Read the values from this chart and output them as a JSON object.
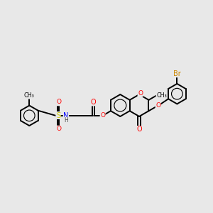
{
  "bg_color": "#e8e8e8",
  "atom_colors": {
    "C": "#000000",
    "O": "#ff0000",
    "N": "#0000ff",
    "S": "#cccc00",
    "Br": "#cc8800",
    "H": "#444444"
  },
  "bond_color": "#000000",
  "bond_width": 1.4,
  "figsize": [
    3.0,
    3.0
  ],
  "dpi": 100
}
